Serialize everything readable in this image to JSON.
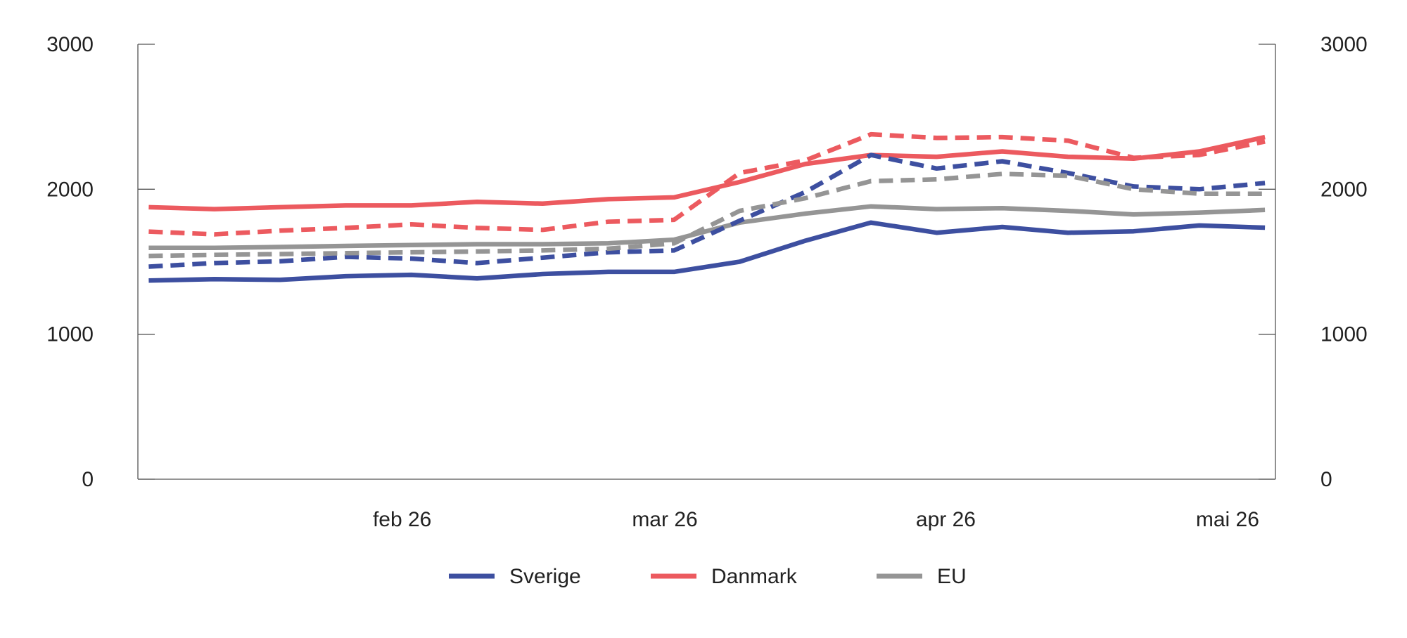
{
  "chart_data": {
    "type": "line",
    "x": [
      0,
      1,
      2,
      3,
      4,
      5,
      6,
      7,
      8,
      9,
      10,
      11,
      12,
      13,
      14,
      15,
      16,
      17
    ],
    "xlim": [
      -0.165,
      17.16
    ],
    "xticks": [
      {
        "value": 3.86,
        "label": "feb 26"
      },
      {
        "value": 7.86,
        "label": "mar 26"
      },
      {
        "value": 12.14,
        "label": "apr 26"
      },
      {
        "value": 16.43,
        "label": "mai 26"
      }
    ],
    "ylim": [
      0,
      3000
    ],
    "yticks": [
      0,
      1000,
      2000,
      3000
    ],
    "y2lim": [
      0,
      3000
    ],
    "y2ticks": [
      0,
      1000,
      2000,
      3000
    ],
    "series": [
      {
        "name": "Sverige",
        "color": "#3d4fa0",
        "values": [
          1370,
          1380,
          1375,
          1400,
          1410,
          1385,
          1415,
          1430,
          1430,
          1500,
          1645,
          1770,
          1700,
          1740,
          1700,
          1710,
          1750,
          1735
        ],
        "dashed_values": [
          1466,
          1491,
          1503,
          1534,
          1522,
          1491,
          1528,
          1565,
          1578,
          1783,
          1981,
          2236,
          2143,
          2193,
          2112,
          2019,
          2000,
          2043
        ]
      },
      {
        "name": "Danmark",
        "color": "#ec5a5f",
        "values": [
          1876,
          1863,
          1876,
          1888,
          1888,
          1913,
          1901,
          1932,
          1944,
          2050,
          2174,
          2236,
          2224,
          2261,
          2224,
          2211,
          2261,
          2360
        ],
        "dashed_values": [
          1708,
          1689,
          1714,
          1733,
          1758,
          1733,
          1720,
          1776,
          1789,
          2112,
          2199,
          2379,
          2354,
          2360,
          2335,
          2217,
          2236,
          2329
        ]
      },
      {
        "name": "EU",
        "color": "#959595",
        "values": [
          1596,
          1596,
          1602,
          1609,
          1615,
          1621,
          1621,
          1627,
          1652,
          1770,
          1832,
          1882,
          1863,
          1870,
          1851,
          1826,
          1839,
          1857
        ],
        "dashed_values": [
          1540,
          1547,
          1553,
          1559,
          1565,
          1571,
          1578,
          1590,
          1627,
          1851,
          1938,
          2056,
          2068,
          2106,
          2093,
          2000,
          1969,
          1969
        ]
      }
    ]
  }
}
